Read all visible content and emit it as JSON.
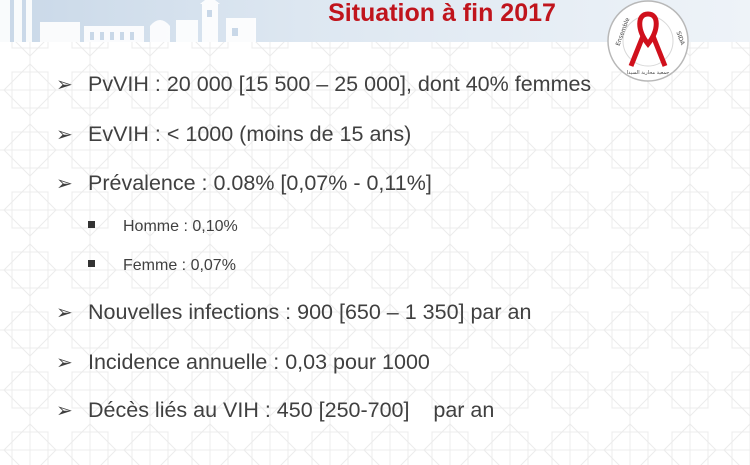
{
  "slide": {
    "title": "Situation à fin 2017",
    "bullets": [
      {
        "text": "PvVIH : 20 000  [15 500 – 25 000], dont 40% femmes"
      },
      {
        "text": "EvVIH : < 1000 (moins de 15 ans)"
      },
      {
        "text": "Prévalence : 0.08% [0,07% - 0,11%]"
      },
      {
        "text": "Homme : 0,10%"
      },
      {
        "text": "Femme : 0,07%"
      },
      {
        "text": "Nouvelles infections : 900 [650 – 1 350] par an"
      },
      {
        "text": "Incidence annuelle : 0,03 pour 1000"
      },
      {
        "text": "Décès liés au VIH : 450 [250-700]    par an"
      }
    ]
  },
  "logo": {
    "text_left": "Ensemble",
    "text_right": "SIDA",
    "text_bottom": "جمعية محاربة السيدا",
    "ribbon_color": "#d0101c"
  },
  "colors": {
    "title": "#c0141c",
    "body_text": "#404040"
  }
}
